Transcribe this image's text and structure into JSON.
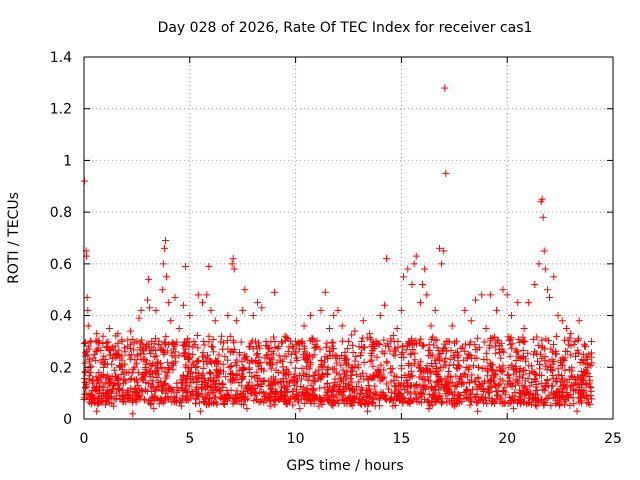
{
  "chart_data": {
    "type": "scatter",
    "title": "Day 028 of 2026, Rate Of TEC Index for receiver cas1",
    "xlabel": "GPS time / hours",
    "ylabel": "ROTI / TECUs",
    "xlim": [
      0,
      25
    ],
    "ylim": [
      0,
      1.4
    ],
    "xticks": [
      0,
      5,
      10,
      15,
      20,
      25
    ],
    "xtick_labels": [
      "0",
      "5",
      "10",
      "15",
      "20",
      "25"
    ],
    "yticks": [
      0,
      0.2,
      0.4,
      0.6,
      0.8,
      1.0,
      1.2,
      1.4
    ],
    "ytick_labels": [
      "0",
      "0.2",
      "0.4",
      "0.6",
      "0.8",
      "1",
      "1.2",
      "1.4"
    ],
    "grid": true,
    "marker": "+",
    "marker_color": "#ff0000",
    "series": [
      {
        "name": "ROTI",
        "points": [
          [
            0.02,
            0.92
          ],
          [
            0.1,
            0.65
          ],
          [
            0.12,
            0.63
          ],
          [
            0.15,
            0.47
          ],
          [
            0.18,
            0.42
          ],
          [
            0.2,
            0.36
          ],
          [
            0.25,
            0.27
          ],
          [
            0.05,
            0.18
          ],
          [
            0.08,
            0.12
          ],
          [
            0.3,
            0.2
          ],
          [
            0.4,
            0.15
          ],
          [
            0.5,
            0.25
          ],
          [
            0.6,
            0.33
          ],
          [
            0.7,
            0.18
          ],
          [
            0.8,
            0.22
          ],
          [
            0.9,
            0.32
          ],
          [
            1.0,
            0.14
          ],
          [
            1.1,
            0.28
          ],
          [
            1.2,
            0.35
          ],
          [
            1.3,
            0.1
          ],
          [
            1.5,
            0.25
          ],
          [
            1.6,
            0.33
          ],
          [
            1.8,
            0.3
          ],
          [
            2.0,
            0.18
          ],
          [
            2.2,
            0.34
          ],
          [
            2.4,
            0.2
          ],
          [
            2.5,
            0.3
          ],
          [
            2.6,
            0.39
          ],
          [
            2.7,
            0.42
          ],
          [
            2.8,
            0.15
          ],
          [
            3.0,
            0.46
          ],
          [
            3.05,
            0.54
          ],
          [
            3.1,
            0.43
          ],
          [
            3.2,
            0.3
          ],
          [
            3.4,
            0.42
          ],
          [
            3.5,
            0.22
          ],
          [
            3.7,
            0.5
          ],
          [
            3.75,
            0.6
          ],
          [
            3.8,
            0.66
          ],
          [
            3.85,
            0.69
          ],
          [
            3.9,
            0.55
          ],
          [
            4.0,
            0.45
          ],
          [
            4.1,
            0.38
          ],
          [
            4.3,
            0.47
          ],
          [
            4.5,
            0.35
          ],
          [
            4.7,
            0.44
          ],
          [
            4.8,
            0.59
          ],
          [
            5.0,
            0.4
          ],
          [
            5.2,
            0.3
          ],
          [
            5.4,
            0.48
          ],
          [
            5.6,
            0.45
          ],
          [
            5.8,
            0.48
          ],
          [
            5.9,
            0.59
          ],
          [
            6.0,
            0.42
          ],
          [
            6.2,
            0.38
          ],
          [
            6.5,
            0.32
          ],
          [
            6.8,
            0.4
          ],
          [
            7.0,
            0.6
          ],
          [
            7.05,
            0.62
          ],
          [
            7.1,
            0.58
          ],
          [
            7.2,
            0.38
          ],
          [
            7.5,
            0.42
          ],
          [
            7.6,
            0.5
          ],
          [
            7.8,
            0.28
          ],
          [
            8.0,
            0.4
          ],
          [
            8.2,
            0.45
          ],
          [
            8.4,
            0.43
          ],
          [
            8.6,
            0.3
          ],
          [
            9.0,
            0.49
          ],
          [
            9.2,
            0.28
          ],
          [
            9.5,
            0.32
          ],
          [
            9.8,
            0.25
          ],
          [
            10.0,
            0.3
          ],
          [
            10.4,
            0.36
          ],
          [
            10.7,
            0.4
          ],
          [
            11.0,
            0.28
          ],
          [
            11.2,
            0.42
          ],
          [
            11.4,
            0.49
          ],
          [
            11.6,
            0.35
          ],
          [
            11.8,
            0.4
          ],
          [
            12.0,
            0.42
          ],
          [
            12.2,
            0.36
          ],
          [
            12.5,
            0.3
          ],
          [
            12.8,
            0.34
          ],
          [
            13.0,
            0.28
          ],
          [
            13.2,
            0.38
          ],
          [
            13.5,
            0.33
          ],
          [
            13.8,
            0.3
          ],
          [
            14.0,
            0.4
          ],
          [
            14.2,
            0.44
          ],
          [
            14.3,
            0.62
          ],
          [
            14.5,
            0.3
          ],
          [
            14.8,
            0.35
          ],
          [
            15.0,
            0.42
          ],
          [
            15.1,
            0.55
          ],
          [
            15.3,
            0.58
          ],
          [
            15.5,
            0.52
          ],
          [
            15.6,
            0.6
          ],
          [
            15.7,
            0.63
          ],
          [
            15.9,
            0.45
          ],
          [
            16.0,
            0.52
          ],
          [
            16.1,
            0.58
          ],
          [
            16.2,
            0.48
          ],
          [
            16.4,
            0.36
          ],
          [
            16.6,
            0.42
          ],
          [
            16.8,
            0.66
          ],
          [
            16.9,
            0.6
          ],
          [
            17.0,
            0.65
          ],
          [
            17.05,
            1.28
          ],
          [
            17.1,
            0.95
          ],
          [
            17.2,
            0.3
          ],
          [
            17.4,
            0.36
          ],
          [
            17.6,
            0.3
          ],
          [
            18.0,
            0.42
          ],
          [
            18.3,
            0.38
          ],
          [
            18.5,
            0.46
          ],
          [
            18.8,
            0.48
          ],
          [
            19.0,
            0.35
          ],
          [
            19.2,
            0.48
          ],
          [
            19.5,
            0.42
          ],
          [
            19.8,
            0.5
          ],
          [
            20.0,
            0.48
          ],
          [
            20.2,
            0.4
          ],
          [
            20.5,
            0.45
          ],
          [
            20.8,
            0.35
          ],
          [
            21.0,
            0.45
          ],
          [
            21.3,
            0.52
          ],
          [
            21.5,
            0.6
          ],
          [
            21.6,
            0.84
          ],
          [
            21.65,
            0.85
          ],
          [
            21.7,
            0.78
          ],
          [
            21.75,
            0.65
          ],
          [
            21.8,
            0.58
          ],
          [
            21.9,
            0.5
          ],
          [
            22.0,
            0.47
          ],
          [
            22.2,
            0.55
          ],
          [
            22.4,
            0.4
          ],
          [
            22.6,
            0.38
          ],
          [
            22.8,
            0.35
          ],
          [
            23.0,
            0.33
          ],
          [
            23.2,
            0.3
          ],
          [
            23.4,
            0.38
          ],
          [
            23.6,
            0.25
          ],
          [
            23.8,
            0.2
          ],
          [
            23.9,
            0.15
          ],
          [
            0.35,
            0.06
          ],
          [
            0.6,
            0.03
          ],
          [
            1.4,
            0.05
          ],
          [
            2.3,
            0.02
          ],
          [
            3.3,
            0.04
          ],
          [
            4.6,
            0.05
          ],
          [
            5.5,
            0.03
          ],
          [
            6.6,
            0.06
          ],
          [
            7.7,
            0.04
          ],
          [
            8.8,
            0.05
          ],
          [
            9.6,
            0.06
          ],
          [
            10.2,
            0.04
          ],
          [
            11.1,
            0.05
          ],
          [
            12.3,
            0.06
          ],
          [
            13.4,
            0.03
          ],
          [
            14.6,
            0.05
          ],
          [
            15.4,
            0.06
          ],
          [
            16.3,
            0.04
          ],
          [
            17.5,
            0.05
          ],
          [
            18.6,
            0.03
          ],
          [
            19.4,
            0.06
          ],
          [
            20.3,
            0.04
          ],
          [
            21.4,
            0.05
          ],
          [
            22.3,
            0.06
          ],
          [
            23.3,
            0.03
          ]
        ]
      }
    ],
    "dense_band": {
      "note": "dense cloud of low ROTI values across the whole day",
      "x_range": [
        0,
        24
      ],
      "y_range": [
        0.05,
        0.3
      ]
    }
  }
}
